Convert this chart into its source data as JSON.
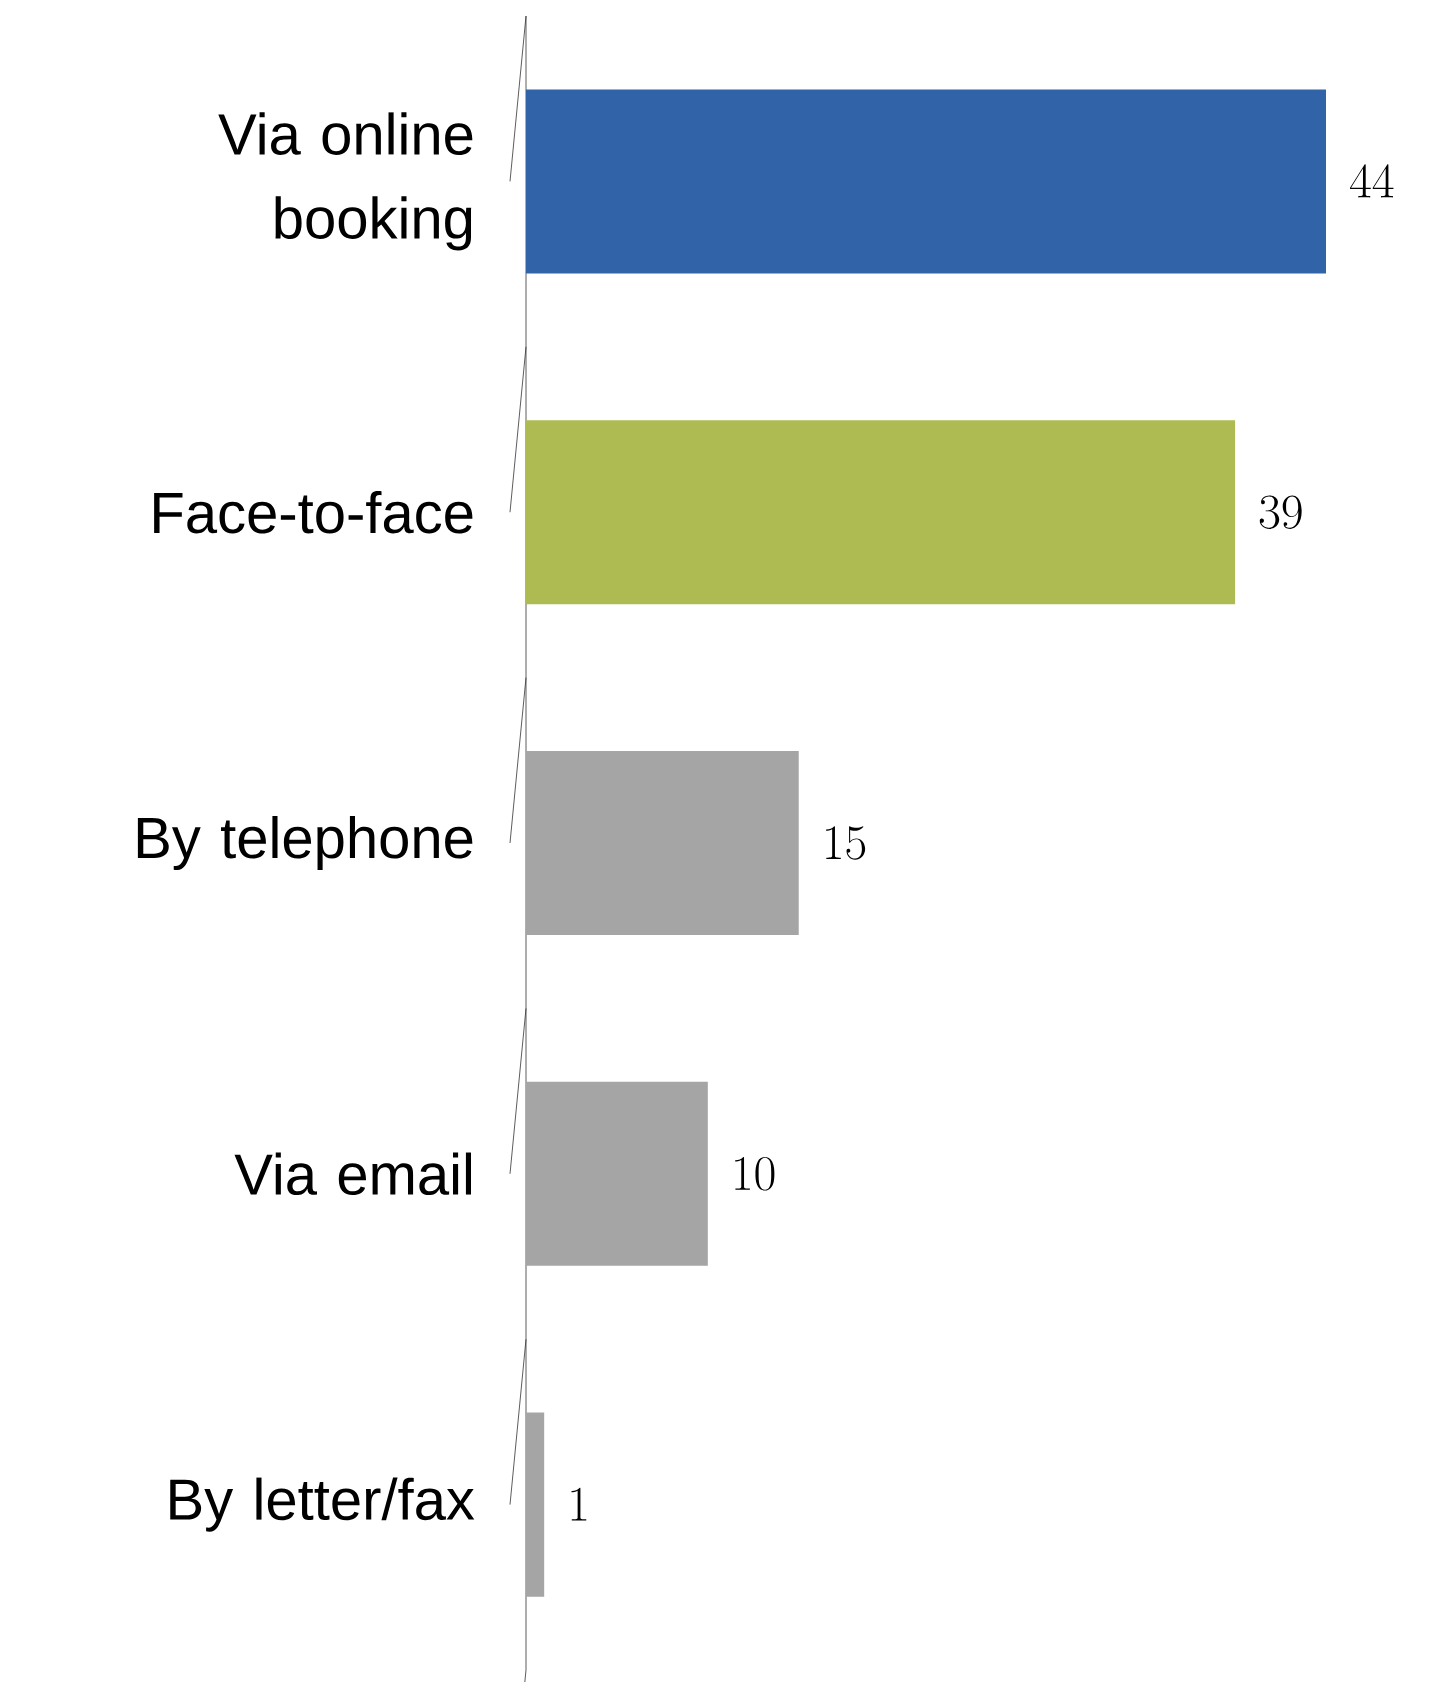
{
  "chart_data": {
    "type": "bar",
    "orientation": "horizontal",
    "categories": [
      "Via online booking",
      "Face-to-face",
      "By telephone",
      "Via email",
      "By letter/fax"
    ],
    "values": [
      44,
      39,
      15,
      10,
      1
    ],
    "colors": [
      "#3163a8",
      "#adbb52",
      "#a5a5a5",
      "#a5a5a5",
      "#a5a5a5"
    ],
    "data_labels": true
  }
}
